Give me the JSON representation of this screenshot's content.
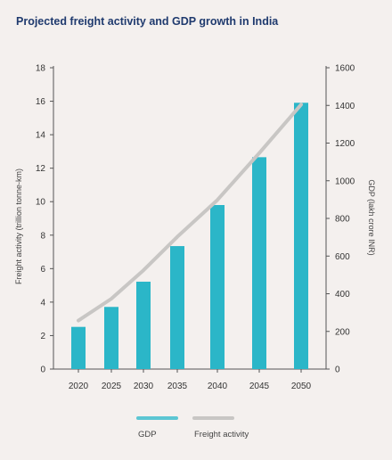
{
  "chart_data": {
    "type": "bar",
    "title": "Projected freight activity and GDP growth in India",
    "categories": [
      "2020",
      "2025",
      "2030",
      "2035",
      "2040",
      "2045",
      "2050"
    ],
    "y_left": {
      "label": "Freight activity (trillion tonne-km)",
      "ylim": [
        0,
        18
      ],
      "ticks": [
        "0",
        "2",
        "4",
        "6",
        "8",
        "10",
        "12",
        "14",
        "16",
        "18"
      ]
    },
    "y_right": {
      "label": "GDP (lakh crore INR)",
      "ylim": [
        0,
        1600
      ],
      "ticks": [
        "0",
        "200",
        "400",
        "600",
        "800",
        "1000",
        "1200",
        "1400",
        "1600"
      ]
    },
    "series": [
      {
        "name": "GDP",
        "type": "bar",
        "axis": "right",
        "color": "#2bb6c8",
        "values": [
          224,
          330,
          464,
          653,
          871,
          1125,
          1414
        ]
      },
      {
        "name": "Freight activity",
        "type": "line",
        "axis": "left",
        "color": "#c8c6c4",
        "values": [
          2.9,
          4.2,
          5.9,
          7.9,
          10.1,
          12.9,
          15.8
        ]
      }
    ],
    "legend": {
      "position": "bottom"
    },
    "grid": false
  }
}
